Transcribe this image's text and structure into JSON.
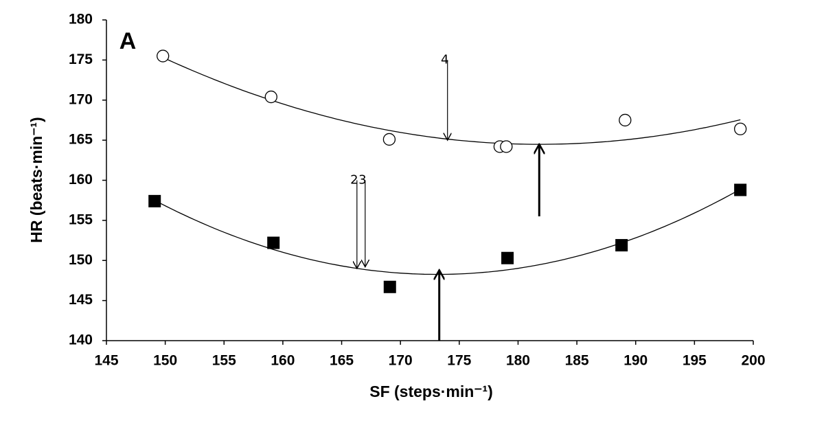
{
  "chart_data": {
    "type": "scatter",
    "panel_label": "A",
    "x_label": "SF (steps·min⁻¹)",
    "y_label": "HR (beats·min⁻¹)",
    "xlim": [
      145,
      200
    ],
    "xticks": [
      145,
      150,
      155,
      160,
      165,
      170,
      175,
      180,
      185,
      190,
      195,
      200
    ],
    "ylim": [
      140,
      180
    ],
    "yticks": [
      140,
      145,
      150,
      155,
      160,
      165,
      170,
      175,
      180
    ],
    "trendline": "quadratic",
    "series": [
      {
        "marker": "circle",
        "color": "#000000",
        "x": [
          149.8,
          159.0,
          169.05,
          178.45,
          179.0,
          189.1,
          198.9
        ],
        "values": [
          175.5,
          170.4,
          165.1,
          164.2,
          164.2,
          167.5,
          166.4
        ]
      },
      {
        "marker": "square",
        "color": "#000000",
        "x": [
          149.1,
          159.2,
          169.1,
          179.1,
          188.8,
          198.9
        ],
        "values": [
          157.4,
          152.2,
          146.7,
          150.3,
          151.9,
          158.8
        ]
      }
    ],
    "annotations": [
      {
        "label": "4",
        "x": 174,
        "from": 175,
        "to": 165
      },
      {
        "label": "2",
        "x": 166.3,
        "from": 160,
        "to": 149
      },
      {
        "label": "3",
        "x": 167,
        "from": 160,
        "to": 149.2
      },
      {
        "x": 181.8,
        "from": 155.5,
        "to": 164.5,
        "bold": true
      },
      {
        "x": 173.3,
        "from": 140,
        "to": 148.8,
        "bold": true
      }
    ]
  }
}
